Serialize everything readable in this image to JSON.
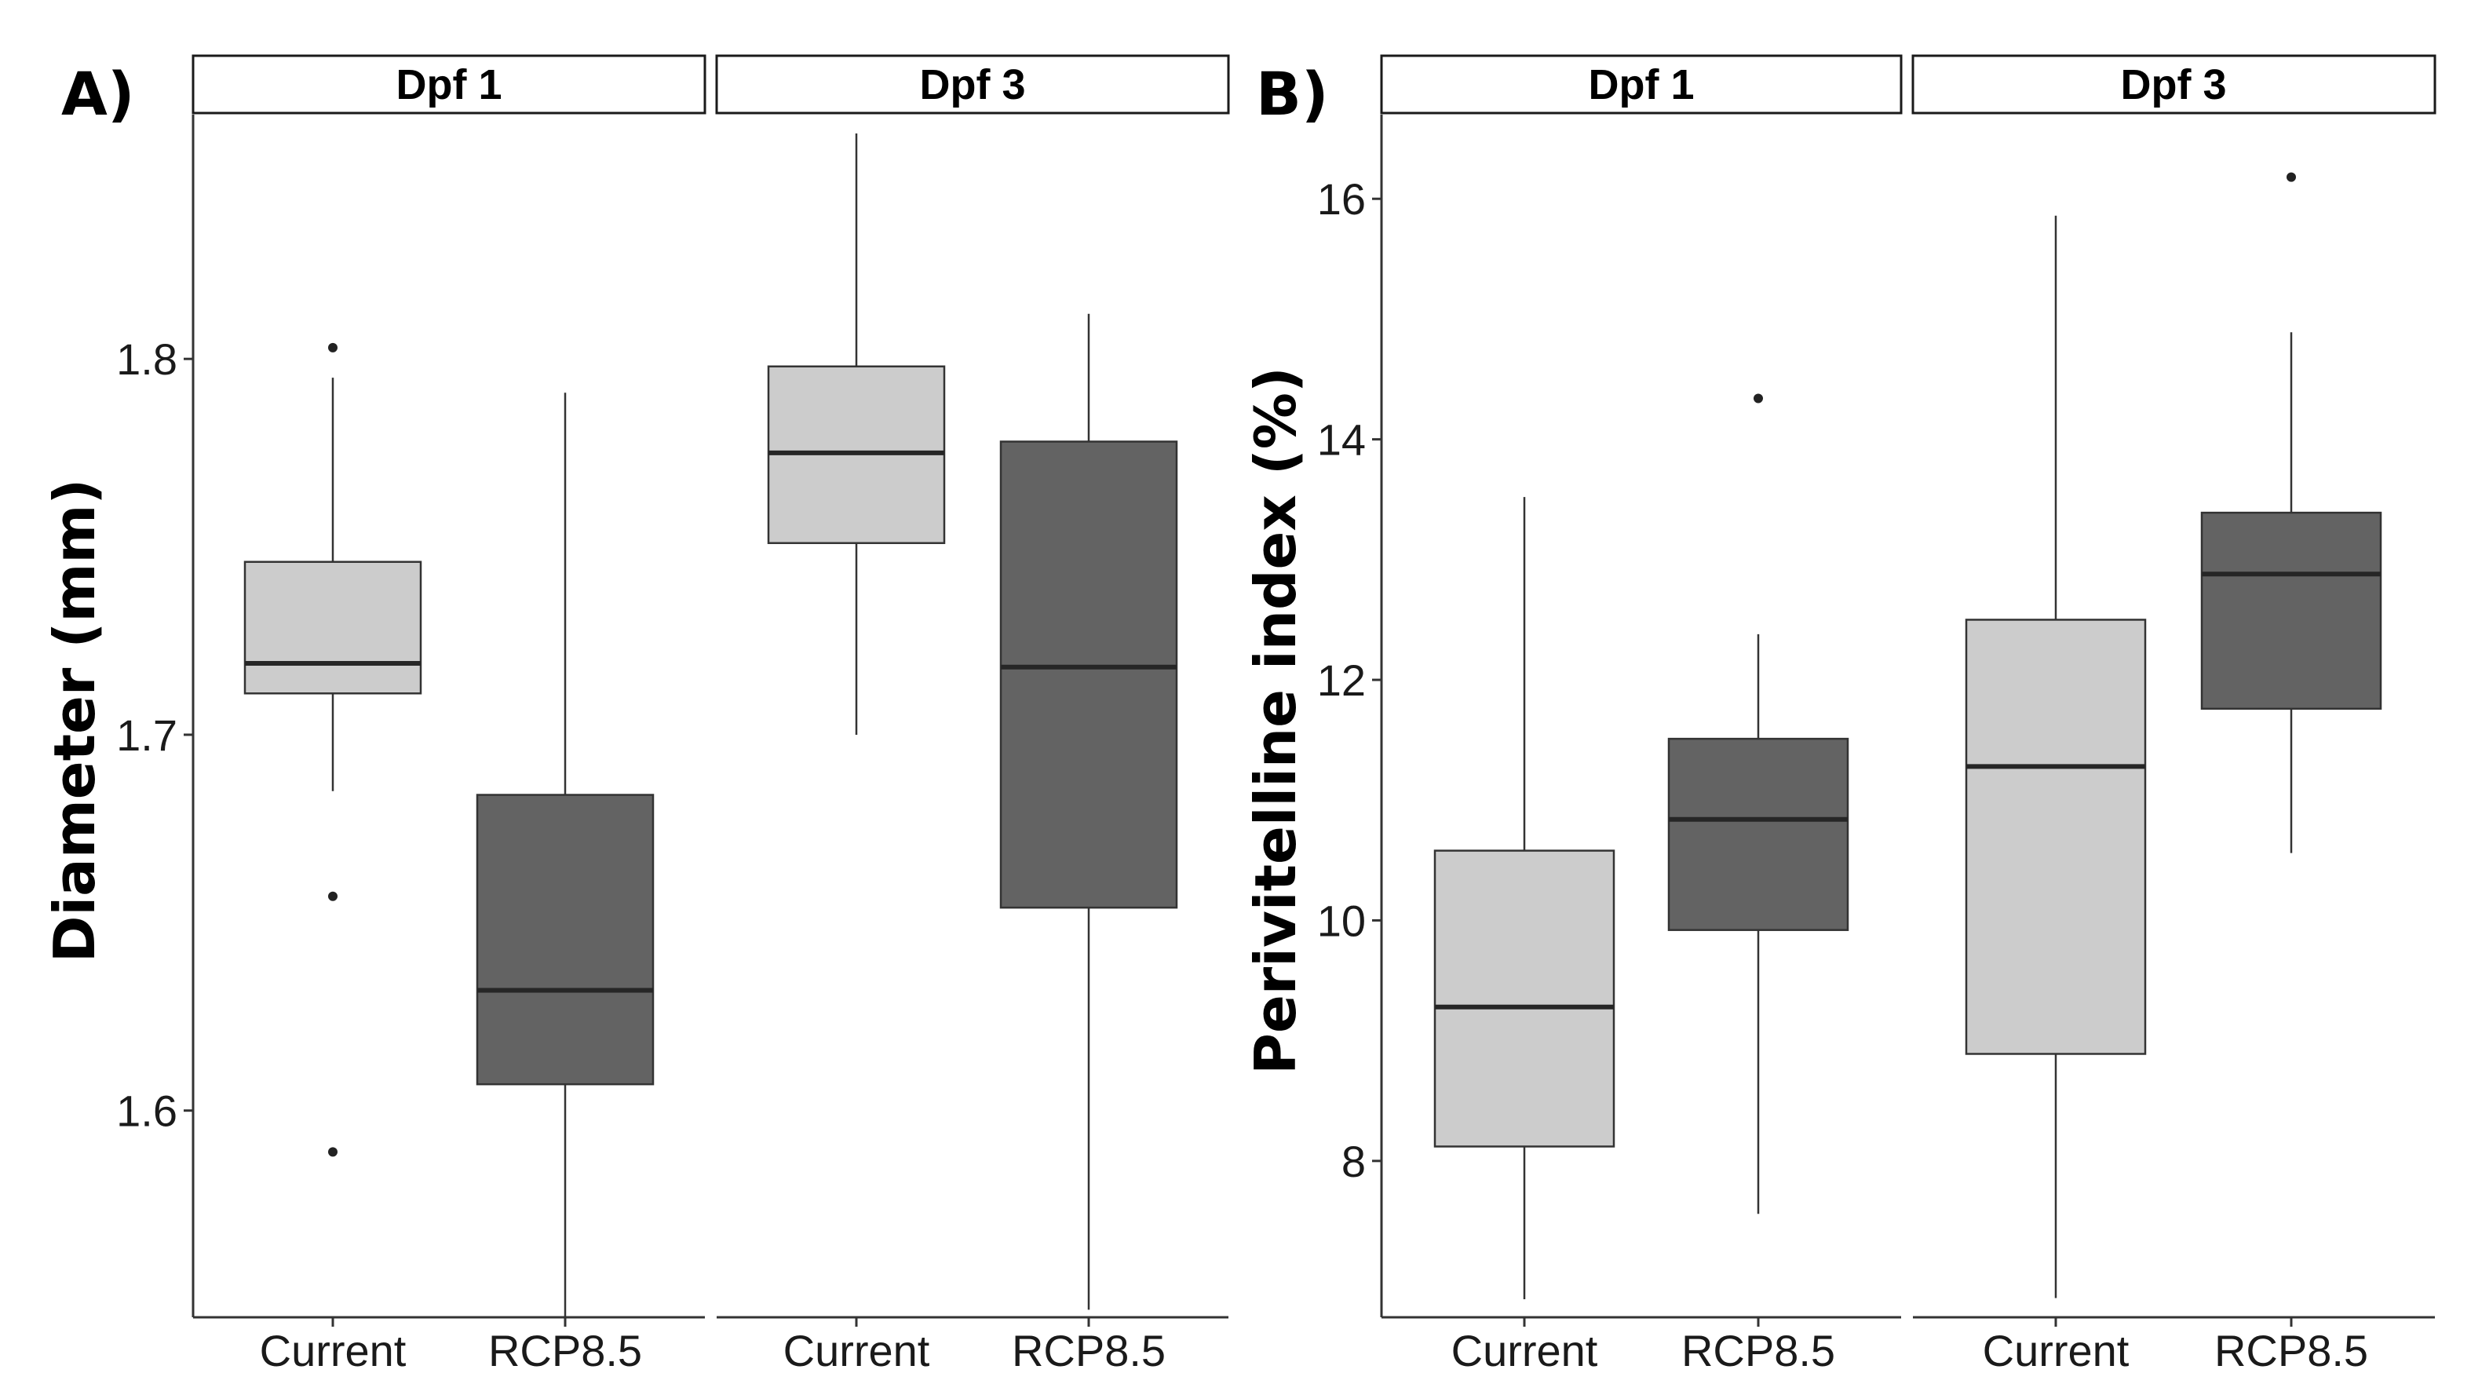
{
  "chart_data": [
    {
      "panel_label": "A)",
      "type": "boxplot",
      "ylabel": "Diameter (mm)",
      "ylim": [
        1.545,
        1.865
      ],
      "yticks": [
        1.6,
        1.7,
        1.8
      ],
      "ytick_labels": [
        "1.6",
        "1.7",
        "1.8"
      ],
      "facets": [
        {
          "strip": "Dpf 1",
          "categories": [
            "Current",
            "RCP8.5"
          ],
          "boxes": [
            {
              "group": "Current",
              "fill": "#cccccc",
              "lower_whisker": 1.685,
              "q1": 1.711,
              "median": 1.719,
              "q3": 1.746,
              "upper_whisker": 1.795,
              "outliers": [
                1.803,
                1.657,
                1.589
              ]
            },
            {
              "group": "RCP8.5",
              "fill": "#636363",
              "lower_whisker": 1.543,
              "q1": 1.607,
              "median": 1.632,
              "q3": 1.684,
              "upper_whisker": 1.791,
              "outliers": []
            }
          ]
        },
        {
          "strip": "Dpf 3",
          "categories": [
            "Current",
            "RCP8.5"
          ],
          "boxes": [
            {
              "group": "Current",
              "fill": "#cccccc",
              "lower_whisker": 1.7,
              "q1": 1.751,
              "median": 1.775,
              "q3": 1.798,
              "upper_whisker": 1.86,
              "outliers": []
            },
            {
              "group": "RCP8.5",
              "fill": "#636363",
              "lower_whisker": 1.547,
              "q1": 1.654,
              "median": 1.718,
              "q3": 1.778,
              "upper_whisker": 1.812,
              "outliers": []
            }
          ]
        }
      ]
    },
    {
      "panel_label": "B)",
      "type": "boxplot",
      "ylabel": "Perivitelline index (%)",
      "ylim": [
        6.7,
        16.7
      ],
      "yticks": [
        8,
        10,
        12,
        14,
        16
      ],
      "ytick_labels": [
        "8",
        "10",
        "12",
        "14",
        "16"
      ],
      "facets": [
        {
          "strip": "Dpf 1",
          "categories": [
            "Current",
            "RCP8.5"
          ],
          "boxes": [
            {
              "group": "Current",
              "fill": "#cccccc",
              "lower_whisker": 6.85,
              "q1": 8.12,
              "median": 9.28,
              "q3": 10.58,
              "upper_whisker": 13.52,
              "outliers": []
            },
            {
              "group": "RCP8.5",
              "fill": "#636363",
              "lower_whisker": 7.56,
              "q1": 9.92,
              "median": 10.84,
              "q3": 11.51,
              "upper_whisker": 12.38,
              "outliers": [
                14.34
              ]
            }
          ]
        },
        {
          "strip": "Dpf 3",
          "categories": [
            "Current",
            "RCP8.5"
          ],
          "boxes": [
            {
              "group": "Current",
              "fill": "#cccccc",
              "lower_whisker": 6.86,
              "q1": 8.89,
              "median": 11.28,
              "q3": 12.5,
              "upper_whisker": 15.86,
              "outliers": []
            },
            {
              "group": "RCP8.5",
              "fill": "#636363",
              "lower_whisker": 10.56,
              "q1": 11.76,
              "median": 12.88,
              "q3": 13.39,
              "upper_whisker": 14.89,
              "outliers": [
                16.18
              ]
            }
          ]
        }
      ]
    }
  ]
}
